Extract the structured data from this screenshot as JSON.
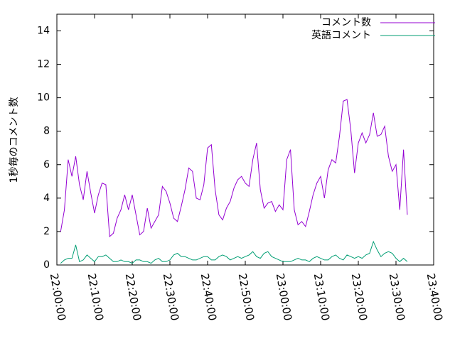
{
  "chart_data": {
    "type": "line",
    "ylabel": "1秒毎のコメント数",
    "x": [
      "22:01:00",
      "22:02:00",
      "22:03:00",
      "22:04:00",
      "22:05:00",
      "22:06:00",
      "22:07:00",
      "22:08:00",
      "22:09:00",
      "22:10:00",
      "22:11:00",
      "22:12:00",
      "22:13:00",
      "22:14:00",
      "22:15:00",
      "22:16:00",
      "22:17:00",
      "22:18:00",
      "22:19:00",
      "22:20:00",
      "22:21:00",
      "22:22:00",
      "22:23:00",
      "22:24:00",
      "22:25:00",
      "22:26:00",
      "22:27:00",
      "22:28:00",
      "22:29:00",
      "22:30:00",
      "22:31:00",
      "22:32:00",
      "22:33:00",
      "22:34:00",
      "22:35:00",
      "22:36:00",
      "22:37:00",
      "22:38:00",
      "22:39:00",
      "22:40:00",
      "22:41:00",
      "22:42:00",
      "22:43:00",
      "22:44:00",
      "22:45:00",
      "22:46:00",
      "22:47:00",
      "22:48:00",
      "22:49:00",
      "22:50:00",
      "22:51:00",
      "22:52:00",
      "22:53:00",
      "22:54:00",
      "22:55:00",
      "22:56:00",
      "22:57:00",
      "22:58:00",
      "22:59:00",
      "23:00:00",
      "23:01:00",
      "23:02:00",
      "23:03:00",
      "23:04:00",
      "23:05:00",
      "23:06:00",
      "23:07:00",
      "23:08:00",
      "23:09:00",
      "23:10:00",
      "23:11:00",
      "23:12:00",
      "23:13:00",
      "23:14:00",
      "23:15:00",
      "23:16:00",
      "23:17:00",
      "23:18:00",
      "23:19:00",
      "23:20:00",
      "23:21:00",
      "23:22:00",
      "23:23:00",
      "23:24:00",
      "23:25:00",
      "23:26:00",
      "23:27:00",
      "23:28:00",
      "23:29:00",
      "23:30:00",
      "23:31:00",
      "23:32:00",
      "23:33:00"
    ],
    "series": [
      {
        "name": "コメント数",
        "color": "#9400d3",
        "values": [
          2.0,
          3.3,
          6.3,
          5.3,
          6.5,
          4.8,
          3.9,
          5.6,
          4.3,
          3.1,
          4.2,
          4.9,
          4.8,
          1.7,
          1.9,
          2.8,
          3.3,
          4.2,
          3.3,
          4.2,
          3.0,
          1.8,
          2.0,
          3.4,
          2.2,
          2.6,
          3.0,
          4.7,
          4.4,
          3.7,
          2.8,
          2.6,
          3.5,
          4.5,
          5.8,
          5.6,
          4.0,
          3.9,
          4.8,
          7.0,
          7.2,
          4.5,
          3.0,
          2.7,
          3.4,
          3.8,
          4.6,
          5.1,
          5.3,
          4.9,
          4.7,
          6.3,
          7.3,
          4.5,
          3.4,
          3.7,
          3.8,
          3.2,
          3.6,
          3.3,
          6.3,
          6.9,
          3.3,
          2.4,
          2.6,
          2.3,
          3.2,
          4.2,
          4.9,
          5.3,
          4.0,
          5.7,
          6.3,
          6.1,
          7.7,
          9.8,
          9.9,
          8.1,
          5.5,
          7.3,
          7.9,
          7.3,
          7.8,
          9.1,
          7.7,
          7.8,
          8.3,
          6.5,
          5.6,
          6.0,
          3.3,
          6.9,
          3.0
        ]
      },
      {
        "name": "英語コメント",
        "color": "#009e73",
        "values": [
          0.1,
          0.3,
          0.4,
          0.4,
          1.2,
          0.2,
          0.3,
          0.6,
          0.4,
          0.2,
          0.5,
          0.5,
          0.6,
          0.4,
          0.2,
          0.2,
          0.3,
          0.2,
          0.2,
          0.1,
          0.3,
          0.3,
          0.2,
          0.2,
          0.1,
          0.3,
          0.4,
          0.2,
          0.2,
          0.3,
          0.6,
          0.7,
          0.5,
          0.5,
          0.4,
          0.3,
          0.3,
          0.4,
          0.5,
          0.5,
          0.3,
          0.3,
          0.5,
          0.6,
          0.5,
          0.3,
          0.4,
          0.5,
          0.4,
          0.5,
          0.6,
          0.8,
          0.5,
          0.4,
          0.7,
          0.8,
          0.5,
          0.4,
          0.3,
          0.2,
          0.2,
          0.2,
          0.3,
          0.4,
          0.3,
          0.3,
          0.2,
          0.4,
          0.5,
          0.4,
          0.3,
          0.3,
          0.5,
          0.6,
          0.4,
          0.3,
          0.6,
          0.5,
          0.4,
          0.5,
          0.4,
          0.6,
          0.7,
          1.4,
          0.9,
          0.5,
          0.7,
          0.8,
          0.7,
          0.4,
          0.2,
          0.4,
          0.2
        ]
      }
    ],
    "xlim": [
      "22:00:00",
      "23:40:00"
    ],
    "xticks": [
      "22:00:00",
      "22:10:00",
      "22:20:00",
      "22:30:00",
      "22:40:00",
      "22:50:00",
      "23:00:00",
      "23:10:00",
      "23:20:00",
      "23:30:00",
      "23:40:00"
    ],
    "ylim": [
      0,
      15
    ],
    "yticks": [
      0,
      2,
      4,
      6,
      8,
      10,
      12,
      14
    ],
    "legend": "top-right"
  }
}
